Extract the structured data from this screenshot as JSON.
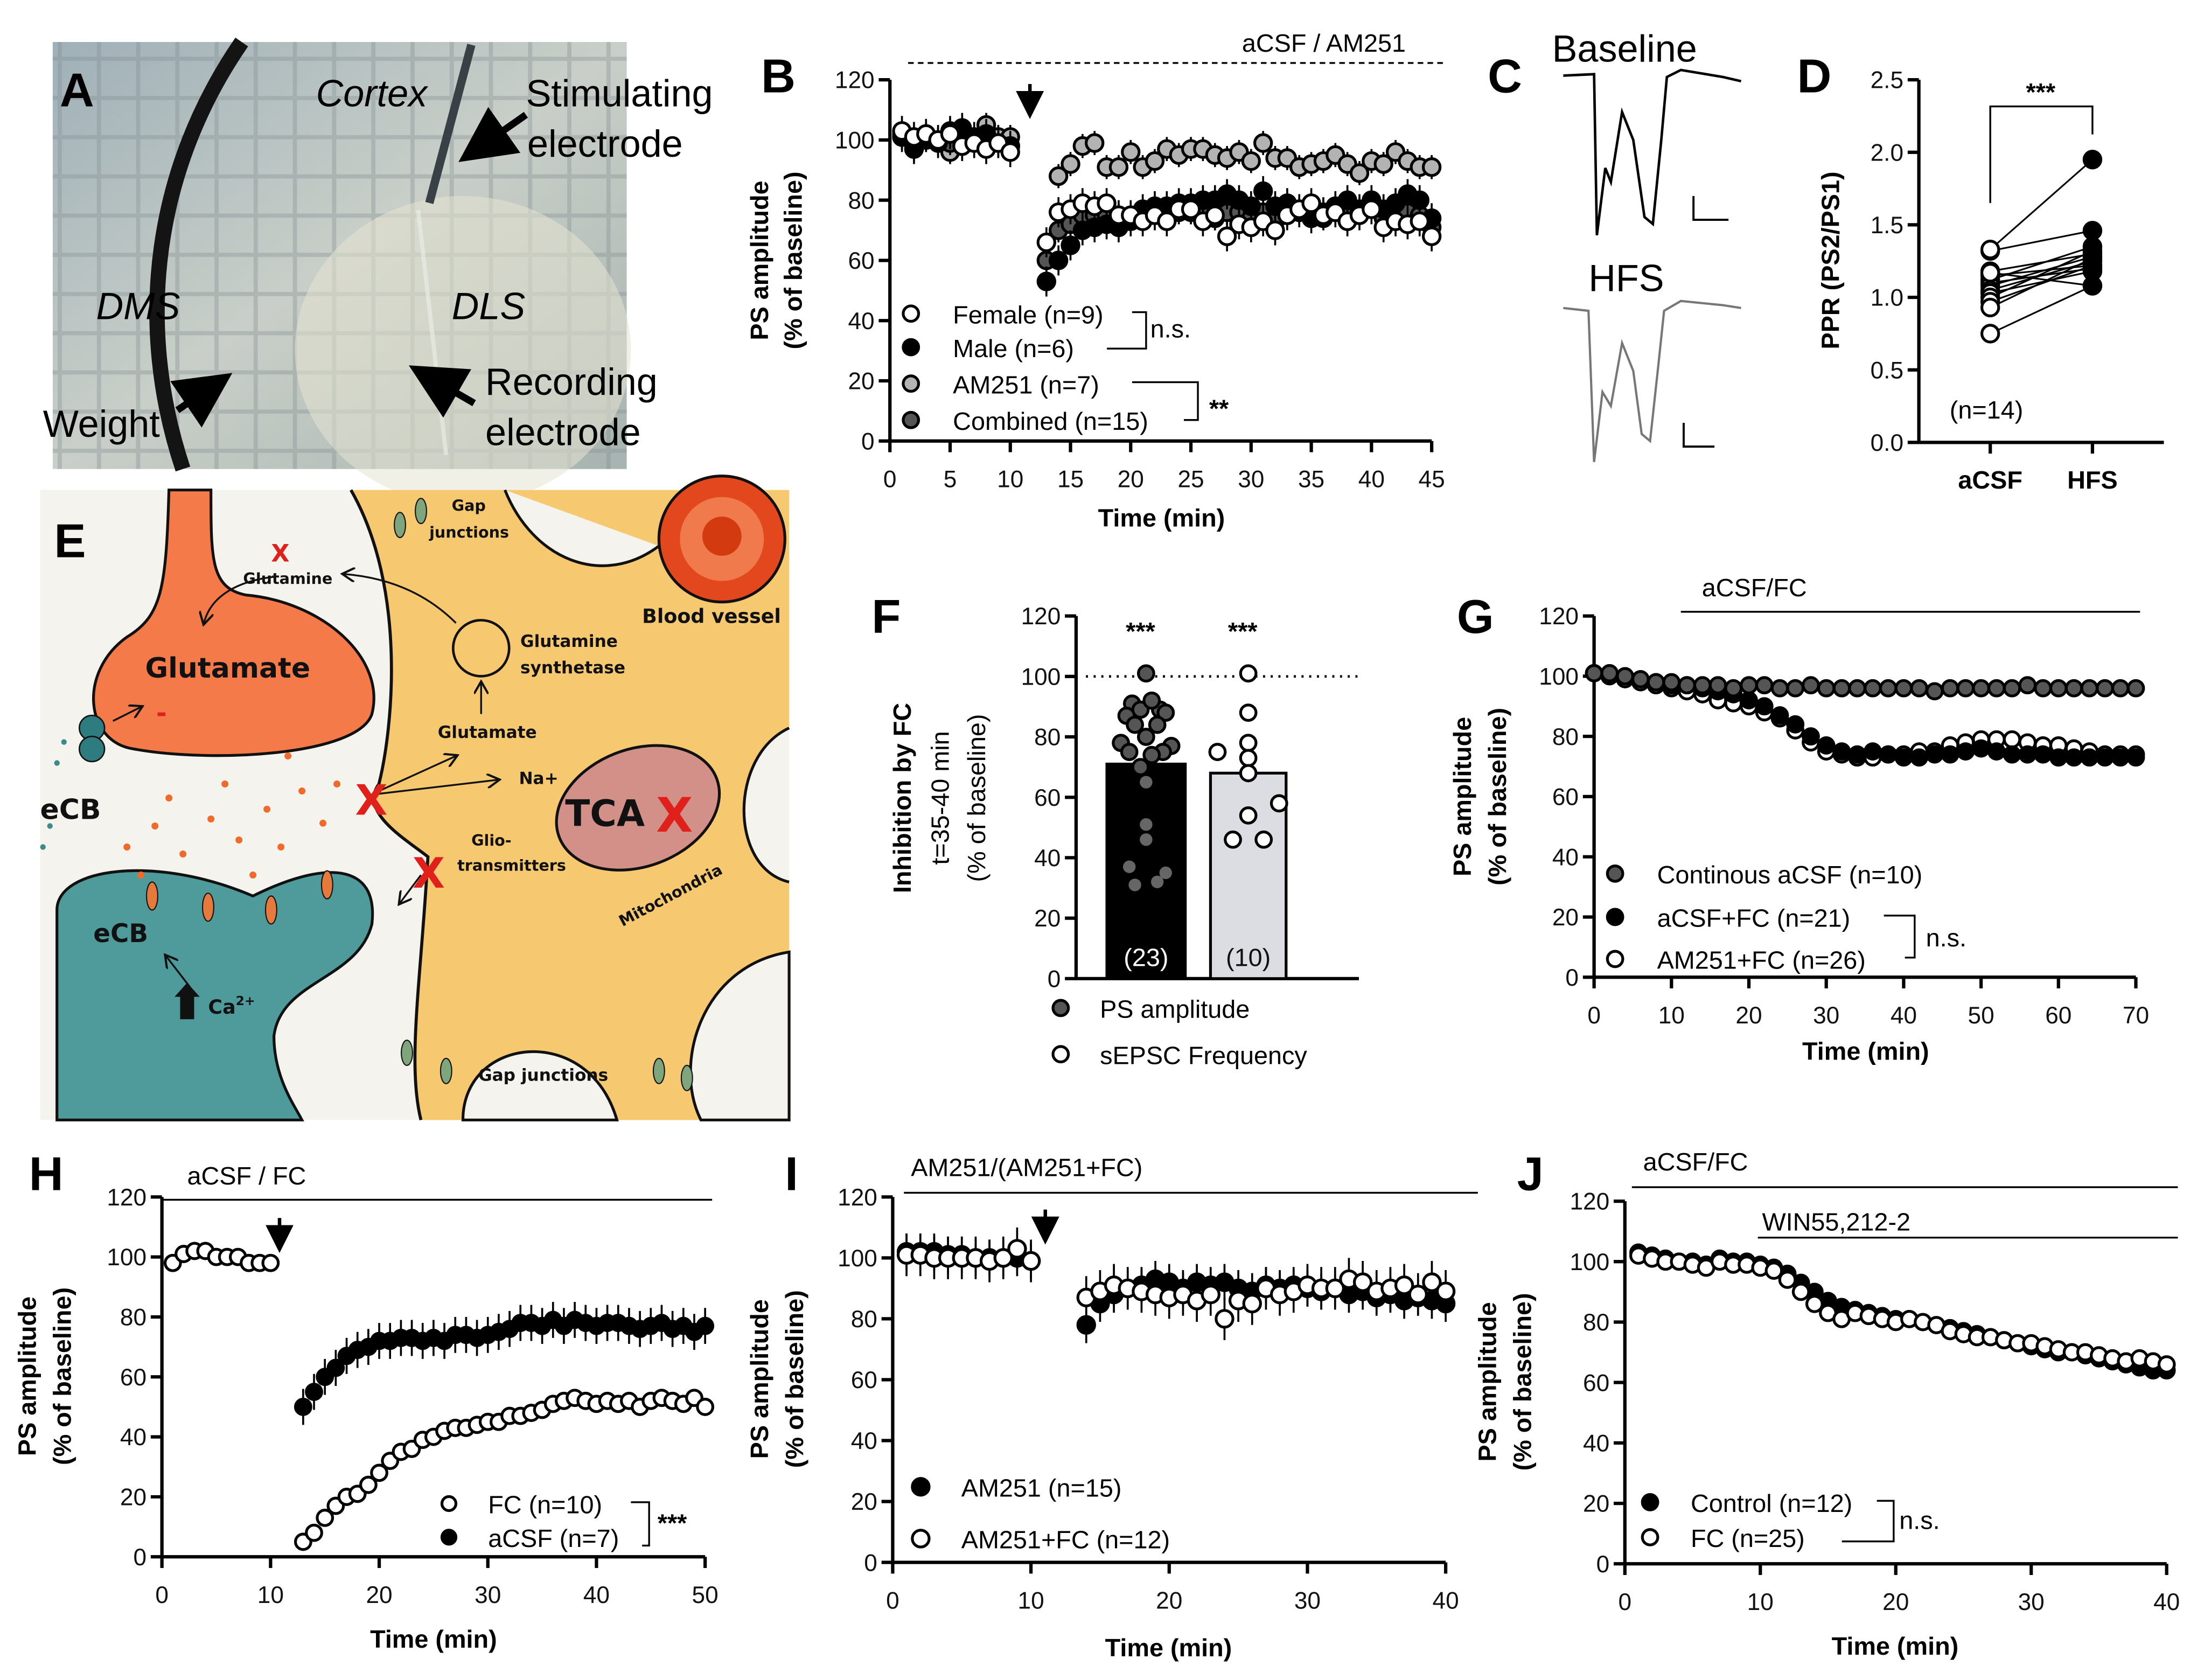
{
  "panels": {
    "A": "A",
    "B": "B",
    "C": "C",
    "D": "D",
    "E": "E",
    "F": "F",
    "G": "G",
    "H": "H",
    "I": "I",
    "J": "J"
  },
  "panel_a": {
    "cortex": "Cortex",
    "stim1": "Stimulating",
    "stim2": "electrode",
    "dms": "DMS",
    "dls": "DLS",
    "weight": "Weight",
    "rec1": "Recording",
    "rec2": "electrode"
  },
  "panel_c": {
    "baseline": "Baseline",
    "hfs": "HFS"
  },
  "panel_e": {
    "gap_top1": "Gap",
    "gap_top2": "junctions",
    "glutamine": "Glutamine",
    "glut_synth1": "Glutamine",
    "glut_synth2": "synthetase",
    "glutamate_big": "Glutamate",
    "glutamate_small": "Glutamate",
    "na": "Na+",
    "ecb_left": "eCB",
    "ecb_post": "eCB",
    "ca": "Ca",
    "ca_sup": "2+",
    "tca": "TCA",
    "mito": "Mitochondria",
    "glio1": "Glio-",
    "glio2": "transmitters",
    "blood": "Blood vessel",
    "gap_bottom": "Gap junctions",
    "minus": "-",
    "x_mark": "X"
  },
  "chart_data": [
    {
      "id": "B",
      "type": "scatter",
      "title": "aCSF / AM251",
      "xlabel": "Time (min)",
      "ylabel": [
        "PS amplitude",
        "(% of baseline)"
      ],
      "xlim": [
        0,
        45
      ],
      "ylim": [
        0,
        120
      ],
      "xticks": [
        0,
        5,
        10,
        15,
        20,
        25,
        30,
        35,
        40,
        45
      ],
      "yticks": [
        0,
        20,
        40,
        60,
        80,
        100,
        120
      ],
      "stats": {
        "sex": "n.s.",
        "drug": "**"
      },
      "series": [
        {
          "name": "AM251 (n=7)",
          "style": "gray",
          "sem": 4,
          "x_start": 1,
          "x_step": 1,
          "values": [
            101,
            97,
            100,
            100,
            96,
            98,
            100,
            105,
            101,
            101,
            null,
            null,
            null,
            88,
            92,
            98,
            99,
            91,
            91,
            96,
            91,
            93,
            97,
            95,
            97,
            97,
            95,
            94,
            96,
            93,
            99,
            94,
            94,
            91,
            92,
            93,
            95,
            92,
            89,
            93,
            92,
            96,
            93,
            91,
            91
          ]
        },
        {
          "name": "Combined (n=15)",
          "style": "dark",
          "sem": 4,
          "x_start": 1,
          "x_step": 1,
          "values": [
            102,
            98,
            101,
            100,
            99,
            100,
            100,
            100,
            99,
            98,
            null,
            null,
            60,
            70,
            72,
            75,
            75,
            75,
            75,
            74,
            75,
            77,
            76,
            76,
            76,
            75,
            74,
            76,
            76,
            74,
            76,
            73,
            75,
            76,
            77,
            74,
            76,
            76,
            77,
            78,
            74,
            76,
            76,
            75,
            71
          ]
        },
        {
          "name": "Male (n=6)",
          "style": "filled",
          "sem": 5,
          "x_start": 1,
          "x_step": 1,
          "values": [
            101,
            97,
            101,
            99,
            103,
            104,
            101,
            102,
            99,
            98,
            null,
            null,
            53,
            60,
            65,
            70,
            71,
            72,
            71,
            73,
            77,
            78,
            78,
            79,
            79,
            80,
            80,
            82,
            80,
            78,
            83,
            78,
            79,
            76,
            74,
            76,
            78,
            80,
            77,
            80,
            77,
            79,
            82,
            80,
            74
          ]
        },
        {
          "name": "Female (n=9)",
          "style": "open",
          "sem": 5,
          "x_start": 1,
          "x_step": 1,
          "values": [
            103,
            101,
            102,
            100,
            102,
            98,
            99,
            97,
            99,
            96,
            null,
            null,
            66,
            76,
            77,
            79,
            78,
            79,
            75,
            75,
            73,
            75,
            73,
            77,
            77,
            73,
            75,
            68,
            72,
            71,
            73,
            70,
            75,
            77,
            79,
            75,
            76,
            73,
            75,
            77,
            71,
            73,
            72,
            73,
            68
          ]
        }
      ]
    },
    {
      "id": "D",
      "type": "scatter",
      "ylabel": "PPR (PS2/PS1)",
      "categories": [
        "aCSF",
        "HFS"
      ],
      "ylim": [
        0,
        2.5
      ],
      "yticks": [
        "0.0",
        "0.5",
        "1.0",
        "1.5",
        "2.0",
        "2.5"
      ],
      "annotation": "(n=14)",
      "stats": "***",
      "pairs": [
        [
          1.32,
          1.46
        ],
        [
          1.33,
          1.95
        ],
        [
          1.18,
          1.3
        ],
        [
          1.15,
          1.22
        ],
        [
          1.12,
          1.35
        ],
        [
          1.1,
          1.2
        ],
        [
          1.08,
          1.28
        ],
        [
          1.05,
          1.25
        ],
        [
          1.03,
          1.18
        ],
        [
          1.0,
          1.32
        ],
        [
          0.97,
          1.22
        ],
        [
          0.93,
          1.27
        ],
        [
          1.17,
          1.08
        ],
        [
          0.75,
          1.08
        ]
      ]
    },
    {
      "id": "F",
      "type": "bar",
      "ylabel": [
        "Inhibition by FC",
        "t=35-40 min",
        "(% of baseline)"
      ],
      "ylim": [
        0,
        120
      ],
      "yticks": [
        0,
        20,
        40,
        60,
        80,
        100,
        120
      ],
      "reference_line": 100,
      "bars": [
        {
          "name": "PS amplitude",
          "value": 71,
          "n_label": "(23)",
          "stats": "***",
          "points": [
            101,
            91,
            89,
            89,
            92,
            87,
            88,
            84,
            84,
            80,
            78,
            77,
            75,
            75,
            74,
            70,
            65,
            51,
            46,
            37,
            31,
            32,
            35
          ]
        },
        {
          "name": "sEPSC Frequency",
          "value": 68,
          "n_label": "(10)",
          "stats": "***",
          "points": [
            101,
            88,
            78,
            75,
            73,
            68,
            58,
            54,
            46,
            46
          ]
        }
      ]
    },
    {
      "id": "G",
      "type": "scatter",
      "title": "aCSF/FC",
      "xlabel": "Time (min)",
      "ylabel": [
        "PS amplitude",
        "(% of baseline)"
      ],
      "xlim": [
        0,
        70
      ],
      "ylim": [
        0,
        120
      ],
      "xticks": [
        0,
        10,
        20,
        30,
        40,
        50,
        60,
        70
      ],
      "yticks": [
        0,
        20,
        40,
        60,
        80,
        100,
        120
      ],
      "stats": "n.s.",
      "series": [
        {
          "name": "AM251+FC (n=26)",
          "style": "open",
          "sem": 3,
          "x_start": 0,
          "x_step": 2,
          "values": [
            101,
            100,
            99,
            98,
            97,
            96,
            95,
            94,
            92,
            91,
            90,
            88,
            86,
            82,
            78,
            75,
            74,
            73,
            73,
            74,
            74,
            75,
            75,
            77,
            78,
            79,
            79,
            79,
            78,
            77,
            77,
            76,
            75,
            74,
            74,
            74
          ]
        },
        {
          "name": "aCSF+FC (n=21)",
          "style": "filled",
          "sem": 3,
          "x_start": 0,
          "x_step": 2,
          "values": [
            101,
            100,
            100,
            99,
            98,
            97,
            97,
            96,
            95,
            94,
            92,
            90,
            87,
            84,
            80,
            77,
            75,
            74,
            75,
            74,
            73,
            73,
            74,
            74,
            75,
            76,
            75,
            74,
            74,
            74,
            73,
            73,
            73,
            73,
            73,
            73
          ]
        },
        {
          "name": "Continous aCSF (n=10)",
          "style": "dark",
          "sem": 2,
          "x_start": 0,
          "x_step": 2,
          "values": [
            101,
            101,
            100,
            99,
            98,
            98,
            97,
            97,
            97,
            96,
            97,
            97,
            96,
            96,
            97,
            96,
            96,
            96,
            96,
            96,
            96,
            96,
            95,
            96,
            96,
            96,
            96,
            96,
            97,
            96,
            96,
            96,
            96,
            96,
            96,
            96
          ]
        }
      ]
    },
    {
      "id": "H",
      "type": "scatter",
      "title": "aCSF / FC",
      "xlabel": "Time (min)",
      "ylabel": [
        "PS amplitude",
        "(% of baseline)"
      ],
      "xlim": [
        0,
        50
      ],
      "ylim": [
        0,
        120
      ],
      "xticks": [
        0,
        10,
        20,
        30,
        40,
        50
      ],
      "yticks": [
        0,
        20,
        40,
        60,
        80,
        100,
        120
      ],
      "stats": "***",
      "series": [
        {
          "name": "aCSF (n=7)",
          "style": "filled",
          "sem": 6,
          "x_start": 13,
          "x_step": 1,
          "values": [
            50,
            55,
            60,
            63,
            67,
            69,
            70,
            72,
            72,
            73,
            73,
            72,
            73,
            72,
            74,
            74,
            73,
            74,
            75,
            76,
            78,
            78,
            77,
            79,
            77,
            79,
            78,
            77,
            78,
            78,
            77,
            76,
            77,
            78,
            76,
            77,
            75,
            77
          ]
        },
        {
          "name": "FC (n=10)",
          "style": "open",
          "sem": 3,
          "x_start": 1,
          "x_step": 1,
          "values": [
            98,
            101,
            102,
            102,
            100,
            100,
            100,
            98,
            98,
            98,
            null,
            null,
            5,
            8,
            13,
            17,
            20,
            21,
            24,
            28,
            32,
            35,
            36,
            39,
            40,
            42,
            43,
            43,
            44,
            45,
            45,
            47,
            47,
            48,
            49,
            51,
            52,
            53,
            52,
            51,
            52,
            51,
            52,
            50,
            52,
            53,
            52,
            51,
            53,
            50
          ]
        }
      ]
    },
    {
      "id": "I",
      "type": "scatter",
      "title": "AM251/(AM251+FC)",
      "xlabel": "Time (min)",
      "ylabel": [
        "PS amplitude",
        "(% of baseline)"
      ],
      "xlim": [
        0,
        40
      ],
      "ylim": [
        0,
        120
      ],
      "xticks": [
        0,
        10,
        20,
        30,
        40
      ],
      "yticks": [
        0,
        20,
        40,
        60,
        80,
        100,
        120
      ],
      "series": [
        {
          "name": "AM251 (n=15)",
          "style": "filled",
          "sem": 6,
          "x_start": 1,
          "x_step": 1,
          "values": [
            102,
            102,
            102,
            101,
            101,
            100,
            100,
            100,
            100,
            99,
            null,
            null,
            null,
            78,
            85,
            88,
            90,
            91,
            93,
            92,
            90,
            92,
            91,
            92,
            90,
            89,
            91,
            90,
            91,
            90,
            89,
            90,
            88,
            89,
            87,
            88,
            86,
            87,
            86,
            85
          ]
        },
        {
          "name": "AM251+FC (n=12)",
          "style": "open",
          "sem": 7,
          "x_start": 1,
          "x_step": 1,
          "values": [
            101,
            101,
            100,
            100,
            100,
            100,
            99,
            100,
            103,
            99,
            null,
            null,
            null,
            87,
            89,
            91,
            90,
            89,
            88,
            87,
            88,
            86,
            88,
            80,
            86,
            85,
            90,
            88,
            89,
            91,
            90,
            90,
            93,
            92,
            89,
            90,
            91,
            88,
            92,
            89
          ]
        }
      ]
    },
    {
      "id": "J",
      "type": "scatter",
      "title": "aCSF/FC",
      "subtitle": "WIN55,212-2",
      "xlabel": "Time (min)",
      "ylabel": [
        "PS amplitude",
        "(% of baseline)"
      ],
      "xlim": [
        0,
        40
      ],
      "ylim": [
        0,
        120
      ],
      "xticks": [
        0,
        10,
        20,
        30,
        40
      ],
      "yticks": [
        0,
        20,
        40,
        60,
        80,
        100,
        120
      ],
      "stats": "n.s.",
      "series": [
        {
          "name": "Control (n=12)",
          "style": "filled",
          "sem": 2,
          "x_start": 1,
          "x_step": 1,
          "values": [
            103,
            102,
            101,
            100,
            100,
            99,
            101,
            100,
            100,
            99,
            98,
            96,
            93,
            90,
            87,
            85,
            84,
            83,
            82,
            81,
            81,
            80,
            79,
            78,
            77,
            76,
            75,
            74,
            73,
            72,
            71,
            70,
            70,
            69,
            68,
            67,
            66,
            65,
            64,
            64
          ]
        },
        {
          "name": "FC (n=25)",
          "style": "open",
          "sem": 2,
          "x_start": 1,
          "x_step": 1,
          "values": [
            102,
            101,
            100,
            100,
            99,
            98,
            100,
            99,
            99,
            98,
            97,
            94,
            90,
            86,
            83,
            81,
            83,
            82,
            81,
            80,
            81,
            80,
            79,
            77,
            76,
            75,
            75,
            74,
            73,
            73,
            72,
            71,
            70,
            70,
            69,
            68,
            67,
            68,
            67,
            66
          ]
        }
      ]
    }
  ]
}
